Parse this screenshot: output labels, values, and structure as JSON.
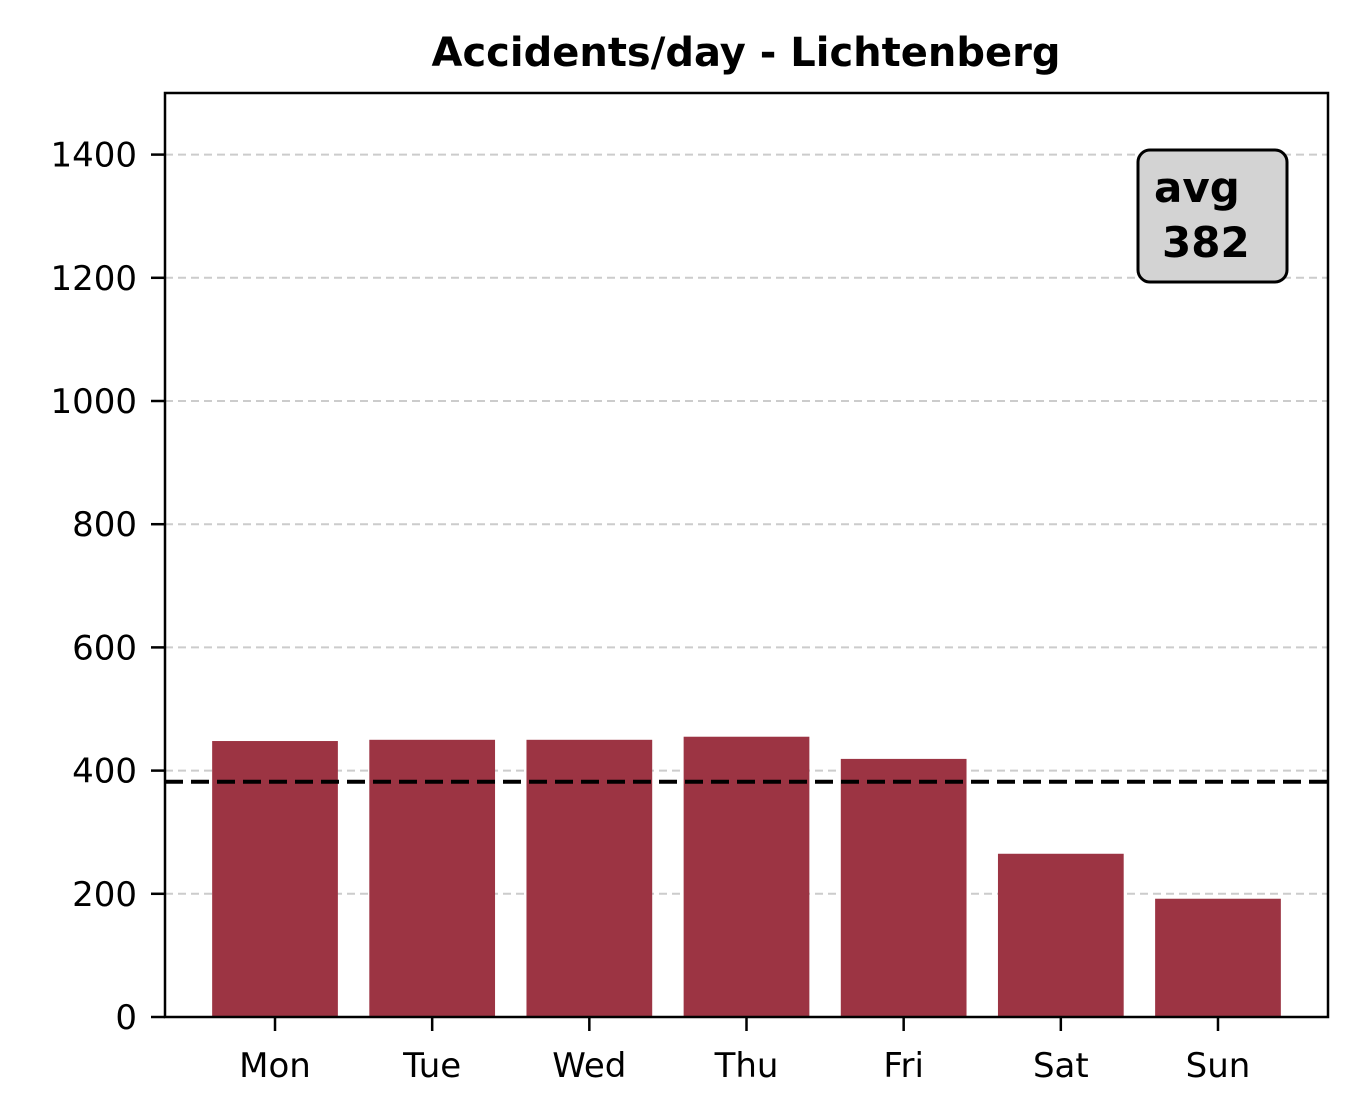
{
  "chart_data": {
    "type": "bar",
    "title": "Accidents/day - Lichtenberg",
    "xlabel": "",
    "ylabel": "",
    "categories": [
      "Mon",
      "Tue",
      "Wed",
      "Thu",
      "Fri",
      "Sat",
      "Sun"
    ],
    "values": [
      448,
      450,
      450,
      455,
      419,
      265,
      192
    ],
    "ylim": [
      0,
      1500
    ],
    "yticks": [
      0,
      200,
      400,
      600,
      800,
      1000,
      1200,
      1400
    ],
    "grid": "horizontal dashed",
    "bar_color": "#9c3443",
    "average": {
      "value": 382,
      "label_line1": "avg",
      "label_line2": "382",
      "line_style": "dashed",
      "line_color": "#000000",
      "box_color": "#d3d3d3"
    }
  }
}
